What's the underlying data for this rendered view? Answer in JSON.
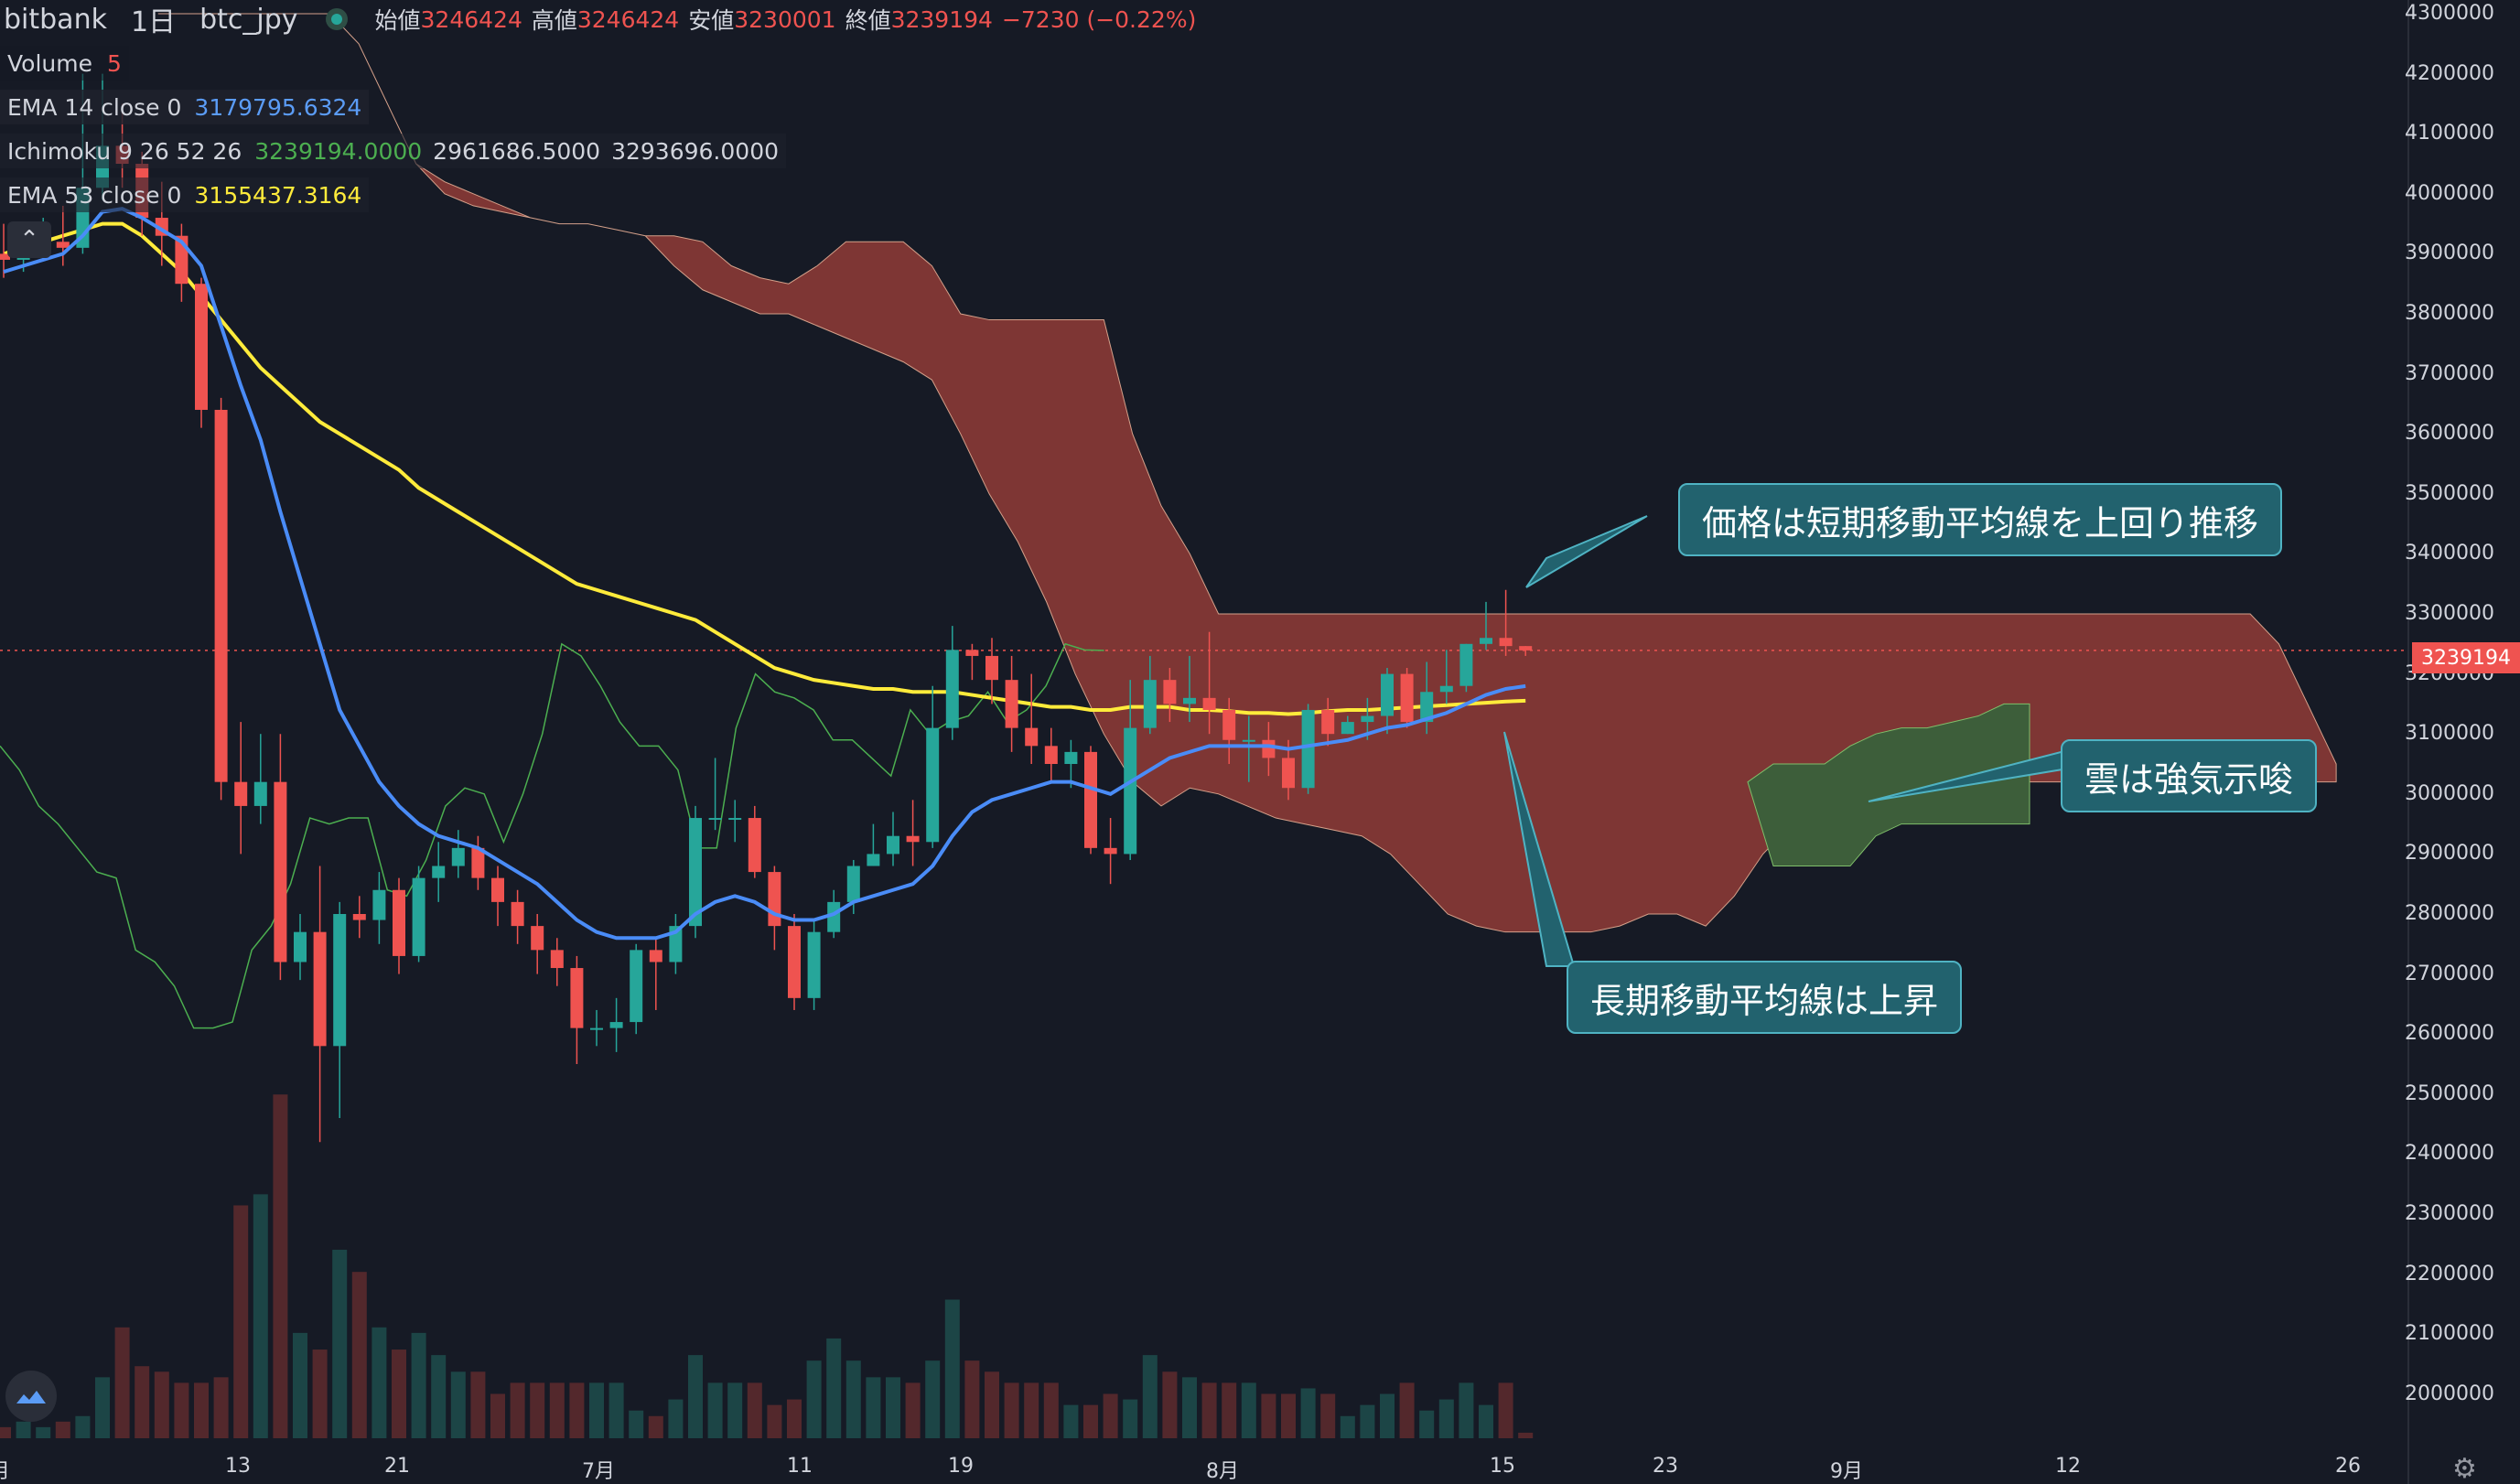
{
  "header": {
    "exchange": "bitbank",
    "interval": "1日",
    "symbol": "btc_jpy",
    "ohlc_labels": {
      "open": "始値",
      "high": "高値",
      "low": "安値",
      "close": "終値"
    },
    "open": "3246424",
    "high": "3246424",
    "low": "3230001",
    "close": "3239194",
    "change": "−7230 (−0.22%)"
  },
  "legend": {
    "volume_label": "Volume",
    "volume_value": "5",
    "ema14_label": "EMA 14 close 0",
    "ema14_value": "3179795.6324",
    "ichimoku_label": "Ichimoku 9 26 52 26",
    "ichimoku_v1": "3239194.0000",
    "ichimoku_v2": "2961686.5000",
    "ichimoku_v3": "3293696.0000",
    "ema53_label": "EMA 53 close 0",
    "ema53_value": "3155437.3164"
  },
  "price_axis": {
    "ticks": [
      "4300000",
      "4200000",
      "4100000",
      "4000000",
      "3900000",
      "3800000",
      "3700000",
      "3600000",
      "3500000",
      "3400000",
      "3300000",
      "3200000",
      "3100000",
      "3000000",
      "2900000",
      "2800000",
      "2700000",
      "2600000",
      "2500000",
      "2400000",
      "2300000",
      "2200000",
      "2100000",
      "2000000"
    ],
    "last_price": "3239194"
  },
  "time_axis": {
    "labels": [
      "月",
      "13",
      "21",
      "7月",
      "11",
      "19",
      "8月",
      "15",
      "23",
      "9月",
      "12",
      "26"
    ]
  },
  "callouts": {
    "short_ema": "価格は短期移動平均線を上回り推移",
    "cloud": "雲は強気示唆",
    "long_ema": "長期移動平均線は上昇"
  },
  "icons": {
    "collapse": "chevron-up-icon",
    "logo": "tradingview-logo-icon",
    "settings": "gear-icon"
  },
  "colors": {
    "up": "#26a69a",
    "down": "#ef5350",
    "ema14": "#4a8cf7",
    "ema53_before": "#ffeb3b",
    "ema53_after": "#ffa726",
    "cloud_bear": "#8a3a36",
    "cloud_bull": "#3d5e3a",
    "chikou": "#4caf50",
    "callout_bg": "#22626e"
  },
  "chart_data": {
    "type": "candlestick",
    "title": "bitbank btc_jpy 1日",
    "x_labels": [
      "月",
      "13",
      "21",
      "7月",
      "11",
      "19",
      "8月",
      "15",
      "23",
      "9月",
      "12",
      "26"
    ],
    "ylim": [
      1960000,
      4320000
    ],
    "candles": [
      [
        3900000,
        3890000,
        3950000,
        3860000
      ],
      [
        3890000,
        3910000,
        3940000,
        3870000
      ],
      [
        3910000,
        3920000,
        3960000,
        3890000
      ],
      [
        3920000,
        3910000,
        3980000,
        3880000
      ],
      [
        3910000,
        4010000,
        4200000,
        3900000
      ],
      [
        4010000,
        4080000,
        4200000,
        3990000
      ],
      [
        4080000,
        4050000,
        4150000,
        4010000
      ],
      [
        4050000,
        3960000,
        4070000,
        3930000
      ],
      [
        3960000,
        3930000,
        4020000,
        3880000
      ],
      [
        3930000,
        3850000,
        3950000,
        3820000
      ],
      [
        3850000,
        3640000,
        3860000,
        3610000
      ],
      [
        3640000,
        3020000,
        3660000,
        2990000
      ],
      [
        3020000,
        2980000,
        3120000,
        2900000
      ],
      [
        2980000,
        3020000,
        3100000,
        2950000
      ],
      [
        3020000,
        2720000,
        3100000,
        2690000
      ],
      [
        2720000,
        2770000,
        2800000,
        2690000
      ],
      [
        2770000,
        2580000,
        2880000,
        2420000
      ],
      [
        2580000,
        2800000,
        2820000,
        2460000
      ],
      [
        2800000,
        2790000,
        2830000,
        2760000
      ],
      [
        2790000,
        2840000,
        2870000,
        2750000
      ],
      [
        2840000,
        2730000,
        2860000,
        2700000
      ],
      [
        2730000,
        2860000,
        2880000,
        2720000
      ],
      [
        2860000,
        2880000,
        2920000,
        2820000
      ],
      [
        2880000,
        2910000,
        2940000,
        2860000
      ],
      [
        2910000,
        2860000,
        2930000,
        2840000
      ],
      [
        2860000,
        2820000,
        2880000,
        2780000
      ],
      [
        2820000,
        2780000,
        2840000,
        2750000
      ],
      [
        2780000,
        2740000,
        2800000,
        2700000
      ],
      [
        2740000,
        2710000,
        2760000,
        2680000
      ],
      [
        2710000,
        2610000,
        2730000,
        2550000
      ],
      [
        2610000,
        2610000,
        2640000,
        2580000
      ],
      [
        2610000,
        2620000,
        2660000,
        2570000
      ],
      [
        2620000,
        2740000,
        2750000,
        2600000
      ],
      [
        2740000,
        2720000,
        2760000,
        2640000
      ],
      [
        2720000,
        2780000,
        2800000,
        2700000
      ],
      [
        2780000,
        2960000,
        2980000,
        2760000
      ],
      [
        2960000,
        2960000,
        3060000,
        2940000
      ],
      [
        2960000,
        2960000,
        2990000,
        2920000
      ],
      [
        2960000,
        2870000,
        2980000,
        2860000
      ],
      [
        2870000,
        2780000,
        2880000,
        2740000
      ],
      [
        2780000,
        2660000,
        2800000,
        2640000
      ],
      [
        2660000,
        2770000,
        2790000,
        2640000
      ],
      [
        2770000,
        2820000,
        2840000,
        2760000
      ],
      [
        2820000,
        2880000,
        2890000,
        2800000
      ],
      [
        2880000,
        2900000,
        2950000,
        2880000
      ],
      [
        2900000,
        2930000,
        2970000,
        2880000
      ],
      [
        2930000,
        2920000,
        2990000,
        2880000
      ],
      [
        2920000,
        3110000,
        3180000,
        2910000
      ],
      [
        3110000,
        3240000,
        3280000,
        3090000
      ],
      [
        3240000,
        3230000,
        3250000,
        3190000
      ],
      [
        3230000,
        3190000,
        3260000,
        3150000
      ],
      [
        3190000,
        3110000,
        3230000,
        3070000
      ],
      [
        3110000,
        3080000,
        3200000,
        3050000
      ],
      [
        3080000,
        3050000,
        3110000,
        3020000
      ],
      [
        3050000,
        3070000,
        3090000,
        3010000
      ],
      [
        3070000,
        2910000,
        3080000,
        2900000
      ],
      [
        2910000,
        2900000,
        2960000,
        2850000
      ],
      [
        2900000,
        3110000,
        3190000,
        2890000
      ],
      [
        3110000,
        3190000,
        3230000,
        3100000
      ],
      [
        3190000,
        3150000,
        3210000,
        3120000
      ],
      [
        3150000,
        3160000,
        3230000,
        3120000
      ],
      [
        3160000,
        3140000,
        3270000,
        3100000
      ],
      [
        3140000,
        3090000,
        3160000,
        3050000
      ],
      [
        3090000,
        3090000,
        3130000,
        3020000
      ],
      [
        3090000,
        3060000,
        3120000,
        3030000
      ],
      [
        3060000,
        3010000,
        3090000,
        2990000
      ],
      [
        3010000,
        3140000,
        3150000,
        3000000
      ],
      [
        3140000,
        3100000,
        3160000,
        3080000
      ],
      [
        3100000,
        3120000,
        3130000,
        3100000
      ],
      [
        3120000,
        3130000,
        3160000,
        3090000
      ],
      [
        3130000,
        3200000,
        3210000,
        3100000
      ],
      [
        3200000,
        3120000,
        3210000,
        3110000
      ],
      [
        3120000,
        3170000,
        3220000,
        3100000
      ],
      [
        3170000,
        3180000,
        3240000,
        3150000
      ],
      [
        3180000,
        3250000,
        3250000,
        3170000
      ],
      [
        3250000,
        3260000,
        3320000,
        3240000
      ],
      [
        3260000,
        3246424,
        3340000,
        3230001
      ],
      [
        3246424,
        3239194,
        3246424,
        3230001
      ]
    ],
    "volume_levels": [
      0.02,
      0.03,
      0.02,
      0.03,
      0.04,
      0.11,
      0.2,
      0.13,
      0.12,
      0.1,
      0.1,
      0.11,
      0.42,
      0.44,
      0.62,
      0.19,
      0.16,
      0.34,
      0.3,
      0.2,
      0.16,
      0.19,
      0.15,
      0.12,
      0.12,
      0.08,
      0.1,
      0.1,
      0.1,
      0.1,
      0.1,
      0.1,
      0.05,
      0.04,
      0.07,
      0.15,
      0.1,
      0.1,
      0.1,
      0.06,
      0.07,
      0.14,
      0.18,
      0.14,
      0.11,
      0.11,
      0.1,
      0.14,
      0.25,
      0.14,
      0.12,
      0.1,
      0.1,
      0.1,
      0.06,
      0.06,
      0.08,
      0.07,
      0.15,
      0.12,
      0.11,
      0.1,
      0.1,
      0.1,
      0.08,
      0.08,
      0.09,
      0.08,
      0.04,
      0.06,
      0.08,
      0.1,
      0.05,
      0.07,
      0.1,
      0.06,
      0.1,
      0.01
    ],
    "ema14": [
      3870000,
      3880000,
      3890000,
      3900000,
      3930000,
      3970000,
      3975000,
      3960000,
      3940000,
      3920000,
      3880000,
      3780000,
      3680000,
      3590000,
      3470000,
      3360000,
      3250000,
      3140000,
      3080000,
      3020000,
      2980000,
      2950000,
      2930000,
      2920000,
      2910000,
      2890000,
      2870000,
      2850000,
      2820000,
      2790000,
      2770000,
      2760000,
      2760000,
      2760000,
      2770000,
      2800000,
      2820000,
      2830000,
      2820000,
      2800000,
      2790000,
      2790000,
      2800000,
      2820000,
      2830000,
      2840000,
      2850000,
      2880000,
      2930000,
      2970000,
      2990000,
      3000000,
      3010000,
      3020000,
      3020000,
      3010000,
      3000000,
      3020000,
      3040000,
      3060000,
      3070000,
      3080000,
      3080000,
      3080000,
      3080000,
      3075000,
      3080000,
      3085000,
      3090000,
      3100000,
      3110000,
      3115000,
      3125000,
      3135000,
      3150000,
      3165000,
      3175000,
      3179795
    ],
    "ema53": [
      3900000,
      3910000,
      3920000,
      3930000,
      3940000,
      3950000,
      3950000,
      3930000,
      3900000,
      3870000,
      3830000,
      3790000,
      3750000,
      3710000,
      3680000,
      3650000,
      3620000,
      3600000,
      3580000,
      3560000,
      3540000,
      3510000,
      3490000,
      3470000,
      3450000,
      3430000,
      3410000,
      3390000,
      3370000,
      3350000,
      3340000,
      3330000,
      3320000,
      3310000,
      3300000,
      3290000,
      3270000,
      3250000,
      3230000,
      3210000,
      3200000,
      3190000,
      3185000,
      3180000,
      3175000,
      3175000,
      3170000,
      3170000,
      3170000,
      3165000,
      3160000,
      3155000,
      3150000,
      3145000,
      3145000,
      3140000,
      3140000,
      3145000,
      3145000,
      3145000,
      3140000,
      3140000,
      3138000,
      3135000,
      3135000,
      3133000,
      3135000,
      3138000,
      3140000,
      3140000,
      3142000,
      3144000,
      3146000,
      3148000,
      3150000,
      3152000,
      3154000,
      3155437
    ],
    "chikou_span": [
      3080000,
      3040000,
      2980000,
      2950000,
      2910000,
      2870000,
      2860000,
      2740000,
      2720000,
      2680000,
      2610000,
      2610000,
      2620000,
      2740000,
      2780000,
      2850000,
      2960000,
      2950000,
      2960000,
      2960000,
      2840000,
      2830000,
      2890000,
      2980000,
      3010000,
      3000000,
      2920000,
      3000000,
      3100000,
      3250000,
      3230000,
      3180000,
      3120000,
      3080000,
      3080000,
      3040000,
      2910000,
      2910000,
      3110000,
      3200000,
      3170000,
      3160000,
      3140000,
      3090000,
      3090000,
      3060000,
      3030000,
      3140000,
      3100000,
      3120000,
      3130000,
      3170000,
      3120000,
      3140000,
      3180000,
      3250000,
      3240000,
      3239194
    ],
    "cloud": {
      "upper": [
        4300000,
        4300000,
        4300000,
        4300000,
        4300000,
        4300000,
        4300000,
        4250000,
        4150000,
        4050000,
        4020000,
        4000000,
        3980000,
        3960000,
        3950000,
        3950000,
        3940000,
        3930000,
        3930000,
        3920000,
        3880000,
        3860000,
        3850000,
        3880000,
        3920000,
        3920000,
        3920000,
        3880000,
        3800000,
        3790000,
        3790000,
        3790000,
        3790000,
        3790000,
        3600000,
        3480000,
        3400000,
        3300000,
        3300000,
        3300000,
        3300000,
        3300000,
        3300000,
        3300000,
        3300000,
        3300000,
        3300000,
        3300000,
        3300000,
        3300000,
        3300000,
        3300000,
        3300000,
        3300000,
        3300000,
        3300000,
        3300000,
        3300000,
        3300000,
        3300000,
        3300000,
        3300000,
        3300000,
        3300000,
        3300000,
        3300000,
        3300000,
        3300000,
        3300000,
        3300000,
        3300000,
        3300000,
        3300000,
        3300000,
        3250000,
        3150000,
        3050000
      ],
      "lower": [
        4300000,
        4300000,
        4300000,
        4300000,
        4300000,
        4300000,
        4300000,
        4250000,
        4150000,
        4050000,
        4000000,
        3980000,
        3970000,
        3960000,
        3950000,
        3950000,
        3940000,
        3930000,
        3880000,
        3840000,
        3820000,
        3800000,
        3800000,
        3780000,
        3760000,
        3740000,
        3720000,
        3690000,
        3600000,
        3500000,
        3420000,
        3320000,
        3200000,
        3100000,
        3020000,
        2980000,
        3010000,
        3000000,
        2980000,
        2960000,
        2950000,
        2940000,
        2930000,
        2900000,
        2850000,
        2800000,
        2780000,
        2770000,
        2770000,
        2770000,
        2770000,
        2780000,
        2800000,
        2800000,
        2780000,
        2830000,
        2900000,
        2950000,
        2970000,
        3000000,
        3020000,
        3020000,
        3030000,
        3030000,
        3020000,
        3020000,
        3020000,
        3020000,
        3020000,
        3020000,
        3020000,
        3020000,
        3020000,
        3020000,
        3020000,
        3020000,
        3020000
      ],
      "bull_upper": [
        3020000,
        3050000,
        3050000,
        3050000,
        3080000,
        3100000,
        3110000,
        3110000,
        3120000,
        3130000,
        3150000,
        3150000
      ],
      "bull_lower": [
        3020000,
        2880000,
        2880000,
        2880000,
        2880000,
        2930000,
        2950000,
        2950000,
        2950000,
        2950000,
        2950000,
        2950000
      ]
    }
  }
}
